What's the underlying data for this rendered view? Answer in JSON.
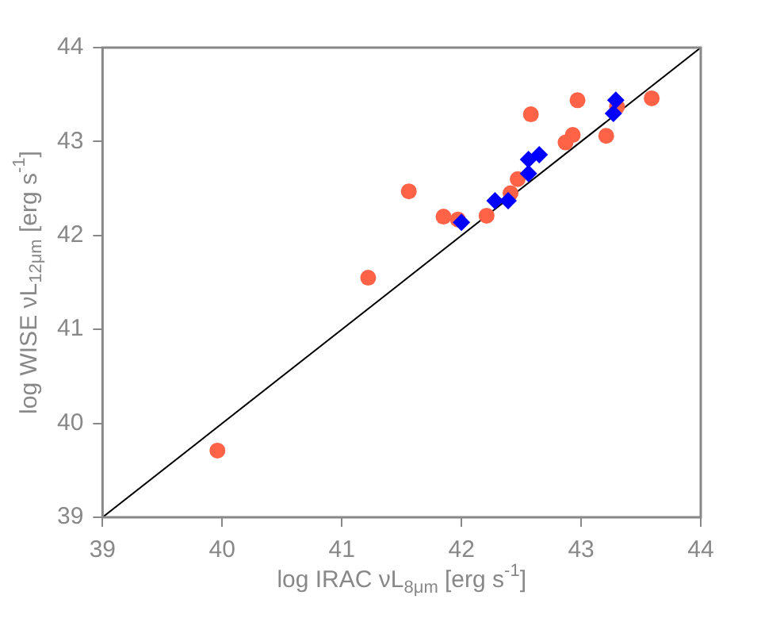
{
  "chart_data": {
    "type": "scatter",
    "xlabel": "log IRAC νL$_{8μm}$ [erg s$^{-1}$]",
    "ylabel": "log WISE νL$_{12μm}$ [erg s$^{-1}$]",
    "xlim": [
      39,
      44
    ],
    "ylim": [
      39,
      44
    ],
    "xticks": [
      39,
      40,
      41,
      42,
      43,
      44
    ],
    "yticks": [
      39,
      40,
      41,
      42,
      43,
      44
    ],
    "grid": false,
    "legend": false,
    "series": [
      {
        "type": "line",
        "color": "#000000",
        "marker": "none",
        "x": [
          39,
          44
        ],
        "values": [
          39,
          44
        ]
      },
      {
        "color": "#ff6347",
        "marker": "circle",
        "x": [
          39.96,
          41.22,
          41.56,
          41.85,
          41.97,
          42.21,
          42.41,
          42.47,
          42.58,
          42.87,
          42.93,
          42.97,
          43.21,
          43.3,
          43.59
        ],
        "values": [
          39.71,
          41.55,
          42.47,
          42.2,
          42.17,
          42.21,
          42.45,
          42.6,
          43.29,
          42.99,
          43.07,
          43.44,
          43.06,
          43.37,
          43.46
        ]
      },
      {
        "color": "#0000ff",
        "marker": "diamond",
        "x": [
          42.0,
          42.28,
          42.39,
          42.56,
          42.56,
          42.65,
          43.27,
          43.29
        ],
        "values": [
          42.14,
          42.37,
          42.37,
          42.66,
          42.81,
          42.86,
          43.3,
          43.44
        ]
      }
    ]
  }
}
